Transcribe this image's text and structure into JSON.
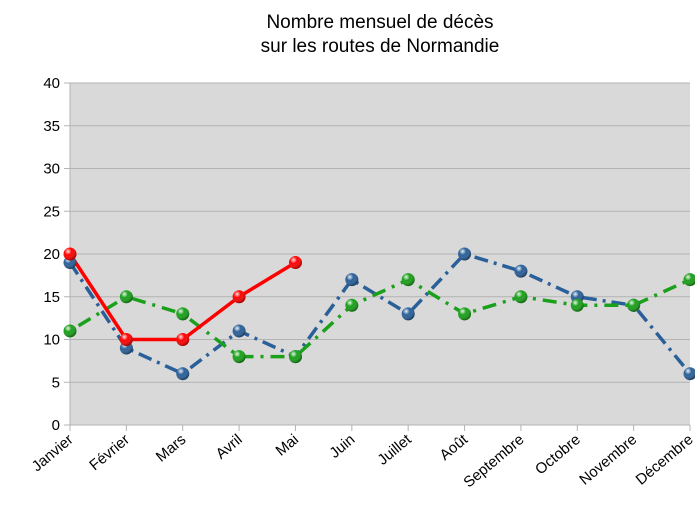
{
  "chart_data": {
    "type": "line",
    "title": [
      "Nombre mensuel de décès",
      "sur les routes de Normandie"
    ],
    "categories": [
      "Janvier",
      "Février",
      "Mars",
      "Avril",
      "Mai",
      "Juin",
      "Juillet",
      "Août",
      "Septembre",
      "Octobre",
      "Novembre",
      "Décembre"
    ],
    "series": [
      {
        "color": "#2a6099",
        "values": [
          19,
          9,
          6,
          11,
          8,
          17,
          13,
          20,
          18,
          15,
          14,
          6
        ]
      },
      {
        "color": "#1aa01a",
        "values": [
          11,
          15,
          13,
          8,
          8,
          14,
          17,
          13,
          15,
          14,
          14,
          17
        ]
      },
      {
        "color": "#ff0000",
        "values": [
          20,
          10,
          10,
          15,
          19,
          null,
          null,
          null,
          null,
          null,
          null,
          null
        ]
      }
    ],
    "ylim": [
      0,
      40
    ],
    "yticks": [
      0,
      5,
      10,
      15,
      20,
      25,
      30,
      35,
      40
    ],
    "grid": true
  }
}
